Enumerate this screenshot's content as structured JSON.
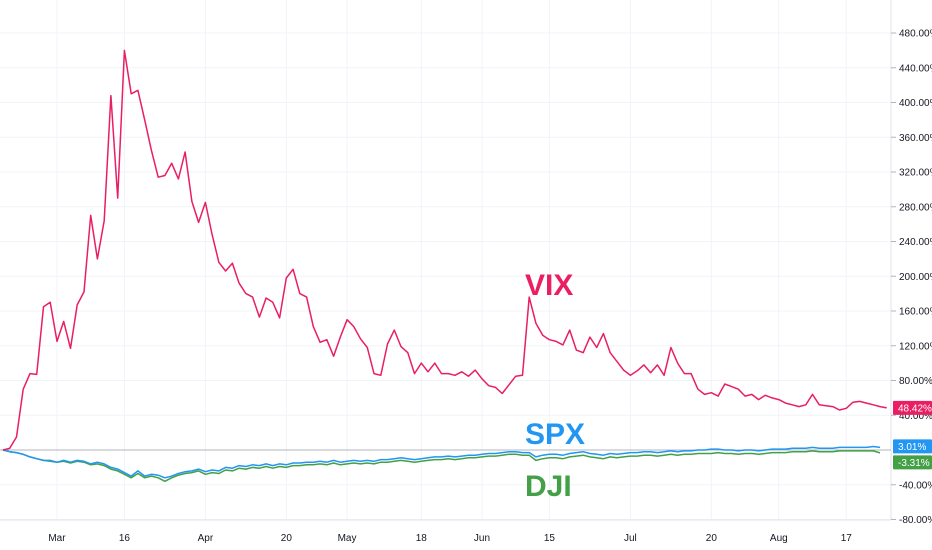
{
  "chart_data": {
    "type": "line",
    "y_unit": "%",
    "ylim": [
      -80,
      500
    ],
    "y_ticks": [
      "480.00%",
      "440.00%",
      "400.00%",
      "360.00%",
      "320.00%",
      "280.00%",
      "240.00%",
      "200.00%",
      "160.00%",
      "120.00%",
      "80.00%",
      "40.00%",
      "-40.00%",
      "-80.00%"
    ],
    "y_tick_values": [
      480,
      440,
      400,
      360,
      320,
      280,
      240,
      200,
      160,
      120,
      80,
      40,
      -40,
      -80
    ],
    "x_ticks": [
      {
        "label": "Mar",
        "i": 8
      },
      {
        "label": "16",
        "i": 18
      },
      {
        "label": "Apr",
        "i": 30
      },
      {
        "label": "20",
        "i": 42
      },
      {
        "label": "May",
        "i": 51
      },
      {
        "label": "18",
        "i": 62
      },
      {
        "label": "Jun",
        "i": 71
      },
      {
        "label": "15",
        "i": 81
      },
      {
        "label": "Jul",
        "i": 93
      },
      {
        "label": "20",
        "i": 105
      },
      {
        "label": "Aug",
        "i": 115
      },
      {
        "label": "17",
        "i": 125
      }
    ],
    "x_count": 131,
    "grid": true,
    "series": [
      {
        "name": "VIX",
        "color": "#e91e63",
        "last_label": "48.42%",
        "values": [
          0,
          2,
          15,
          70,
          88,
          87,
          165,
          170,
          125,
          148,
          117,
          167,
          182,
          270,
          220,
          264,
          408,
          290,
          460,
          410,
          414,
          380,
          345,
          314,
          316,
          330,
          312,
          343,
          286,
          262,
          285,
          248,
          216,
          206,
          215,
          192,
          180,
          176,
          153,
          175,
          170,
          152,
          198,
          208,
          180,
          176,
          142,
          124,
          127,
          108,
          130,
          150,
          142,
          128,
          118,
          88,
          86,
          122,
          138,
          119,
          112,
          88,
          100,
          90,
          100,
          88,
          88,
          86,
          90,
          85,
          92,
          82,
          74,
          72,
          65,
          75,
          85,
          86,
          176,
          146,
          132,
          127,
          125,
          121,
          138,
          115,
          112,
          130,
          118,
          134,
          112,
          102,
          92,
          86,
          91,
          98,
          89,
          98,
          86,
          118,
          100,
          88,
          88,
          70,
          64,
          66,
          62,
          76,
          73,
          70,
          62,
          64,
          58,
          63,
          60,
          58,
          54,
          52,
          50,
          52,
          64,
          52,
          51,
          50,
          46,
          48,
          55,
          56,
          54,
          52,
          50,
          48.42
        ]
      },
      {
        "name": "SPX",
        "color": "#2196f3",
        "last_label": "3.01%",
        "values": [
          0,
          -2,
          -3,
          -5,
          -8,
          -10,
          -12,
          -12,
          -14,
          -12,
          -14,
          -12,
          -13,
          -16,
          -14,
          -16,
          -20,
          -22,
          -26,
          -30,
          -24,
          -30,
          -28,
          -29,
          -32,
          -30,
          -27,
          -25,
          -24,
          -22,
          -25,
          -23,
          -24,
          -20,
          -21,
          -18,
          -19,
          -17,
          -18,
          -16,
          -18,
          -16,
          -17,
          -15,
          -15,
          -14,
          -14,
          -13,
          -14,
          -12,
          -14,
          -13,
          -12,
          -13,
          -12,
          -13,
          -11,
          -11,
          -10,
          -9,
          -10,
          -11,
          -10,
          -9,
          -8,
          -8,
          -7,
          -8,
          -7,
          -6,
          -6,
          -5,
          -4,
          -4,
          -3,
          -2,
          -2,
          -3,
          -3,
          -8,
          -6,
          -5,
          -5,
          -6,
          -4,
          -3,
          -2,
          -4,
          -5,
          -6,
          -4,
          -5,
          -4,
          -3,
          -3,
          -2,
          -2,
          -3,
          -2,
          -1,
          -2,
          -1,
          -1,
          0,
          0,
          1,
          1,
          0,
          0,
          -1,
          0,
          0,
          -1,
          0,
          1,
          1,
          1,
          2,
          2,
          2,
          3,
          2,
          2,
          2,
          3,
          3,
          3,
          3,
          3,
          4,
          3.01
        ]
      },
      {
        "name": "DJI",
        "color": "#43a047",
        "last_label": "-3.31%",
        "values": [
          0,
          -2,
          -3,
          -5,
          -8,
          -10,
          -12,
          -13,
          -14,
          -13,
          -15,
          -13,
          -14,
          -17,
          -16,
          -18,
          -22,
          -24,
          -28,
          -32,
          -27,
          -32,
          -30,
          -32,
          -36,
          -32,
          -29,
          -27,
          -26,
          -24,
          -28,
          -26,
          -27,
          -23,
          -24,
          -21,
          -22,
          -20,
          -21,
          -19,
          -21,
          -19,
          -20,
          -18,
          -18,
          -17,
          -17,
          -16,
          -17,
          -15,
          -17,
          -16,
          -15,
          -16,
          -15,
          -16,
          -14,
          -14,
          -13,
          -12,
          -13,
          -14,
          -13,
          -12,
          -11,
          -11,
          -10,
          -11,
          -10,
          -9,
          -9,
          -8,
          -7,
          -7,
          -6,
          -5,
          -5,
          -6,
          -6,
          -12,
          -10,
          -9,
          -9,
          -10,
          -8,
          -7,
          -6,
          -8,
          -9,
          -10,
          -8,
          -9,
          -8,
          -7,
          -7,
          -6,
          -6,
          -7,
          -6,
          -5,
          -6,
          -5,
          -5,
          -4,
          -4,
          -4,
          -3,
          -4,
          -4,
          -5,
          -4,
          -4,
          -5,
          -4,
          -3,
          -3,
          -3,
          -2,
          -2,
          -2,
          -1,
          -2,
          -2,
          -2,
          -1,
          -1,
          -1,
          -1,
          -1,
          -1,
          -3.31
        ]
      }
    ],
    "annotations": [
      {
        "text": "VIX",
        "color": "#e91e63"
      },
      {
        "text": "SPX",
        "color": "#2196f3"
      },
      {
        "text": "DJI",
        "color": "#43a047"
      }
    ]
  }
}
